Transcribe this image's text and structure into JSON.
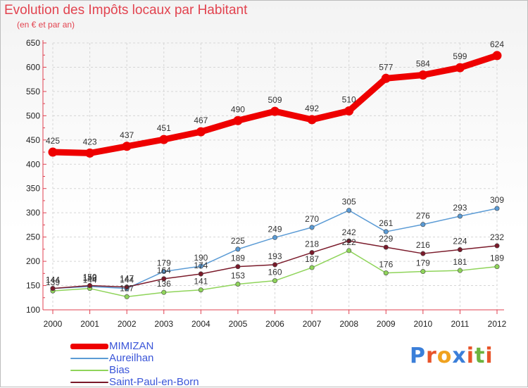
{
  "title": "Evolution des Impôts locaux par Habitant",
  "subtitle": "(en € et par an)",
  "logo": {
    "text": "Proxiti",
    "letter_colors": [
      "#3b7fd9",
      "#e8542a",
      "#f0a21f",
      "#3b7fd9",
      "#e8542a",
      "#6db33f",
      "#e8542a"
    ]
  },
  "chart_data": {
    "type": "line",
    "x": [
      "2000",
      "2001",
      "2002",
      "2003",
      "2004",
      "2005",
      "2006",
      "2007",
      "2008",
      "2009",
      "2010",
      "2011",
      "2012"
    ],
    "yticks": [
      "100",
      "150",
      "200",
      "250",
      "300",
      "350",
      "400",
      "450",
      "500",
      "550",
      "600",
      "650"
    ],
    "ylim": [
      100,
      650
    ],
    "grid": true,
    "legend_position": "bottom-left",
    "series": [
      {
        "name": "MIMIZAN",
        "color": "#ee0000",
        "width": 9,
        "values": [
          425,
          423,
          437,
          451,
          467,
          490,
          509,
          492,
          510,
          577,
          584,
          599,
          624
        ],
        "labels": [
          "425",
          "423",
          "437",
          "451",
          "467",
          "490",
          "509",
          "492",
          "510",
          "577",
          "584",
          "599",
          "624"
        ]
      },
      {
        "name": "Aureilhan",
        "color": "#5b9bd5",
        "width": 1.5,
        "values": [
          144,
          148,
          144,
          179,
          190,
          225,
          249,
          270,
          305,
          261,
          276,
          293,
          309
        ],
        "labels": [
          "144",
          "148",
          "144",
          "179",
          "190",
          "225",
          "249",
          "270",
          "305",
          "261",
          "276",
          "293",
          "309"
        ]
      },
      {
        "name": "Bias",
        "color": "#8fd45a",
        "width": 1.5,
        "values": [
          139,
          144,
          127,
          136,
          141,
          153,
          160,
          187,
          222,
          176,
          179,
          181,
          189
        ],
        "labels": [
          "139",
          "144",
          "127",
          "136",
          "141",
          "153",
          "160",
          "187",
          "222",
          "176",
          "179",
          "181",
          "189"
        ]
      },
      {
        "name": "Saint-Paul-en-Born",
        "color": "#7a1a2a",
        "width": 1.5,
        "values": [
          144,
          150,
          147,
          164,
          174,
          189,
          193,
          218,
          242,
          229,
          216,
          224,
          232
        ],
        "labels": [
          "144",
          "150",
          "147",
          "164",
          "174",
          "189",
          "193",
          "218",
          "242",
          "229",
          "216",
          "224",
          "232"
        ]
      }
    ]
  }
}
